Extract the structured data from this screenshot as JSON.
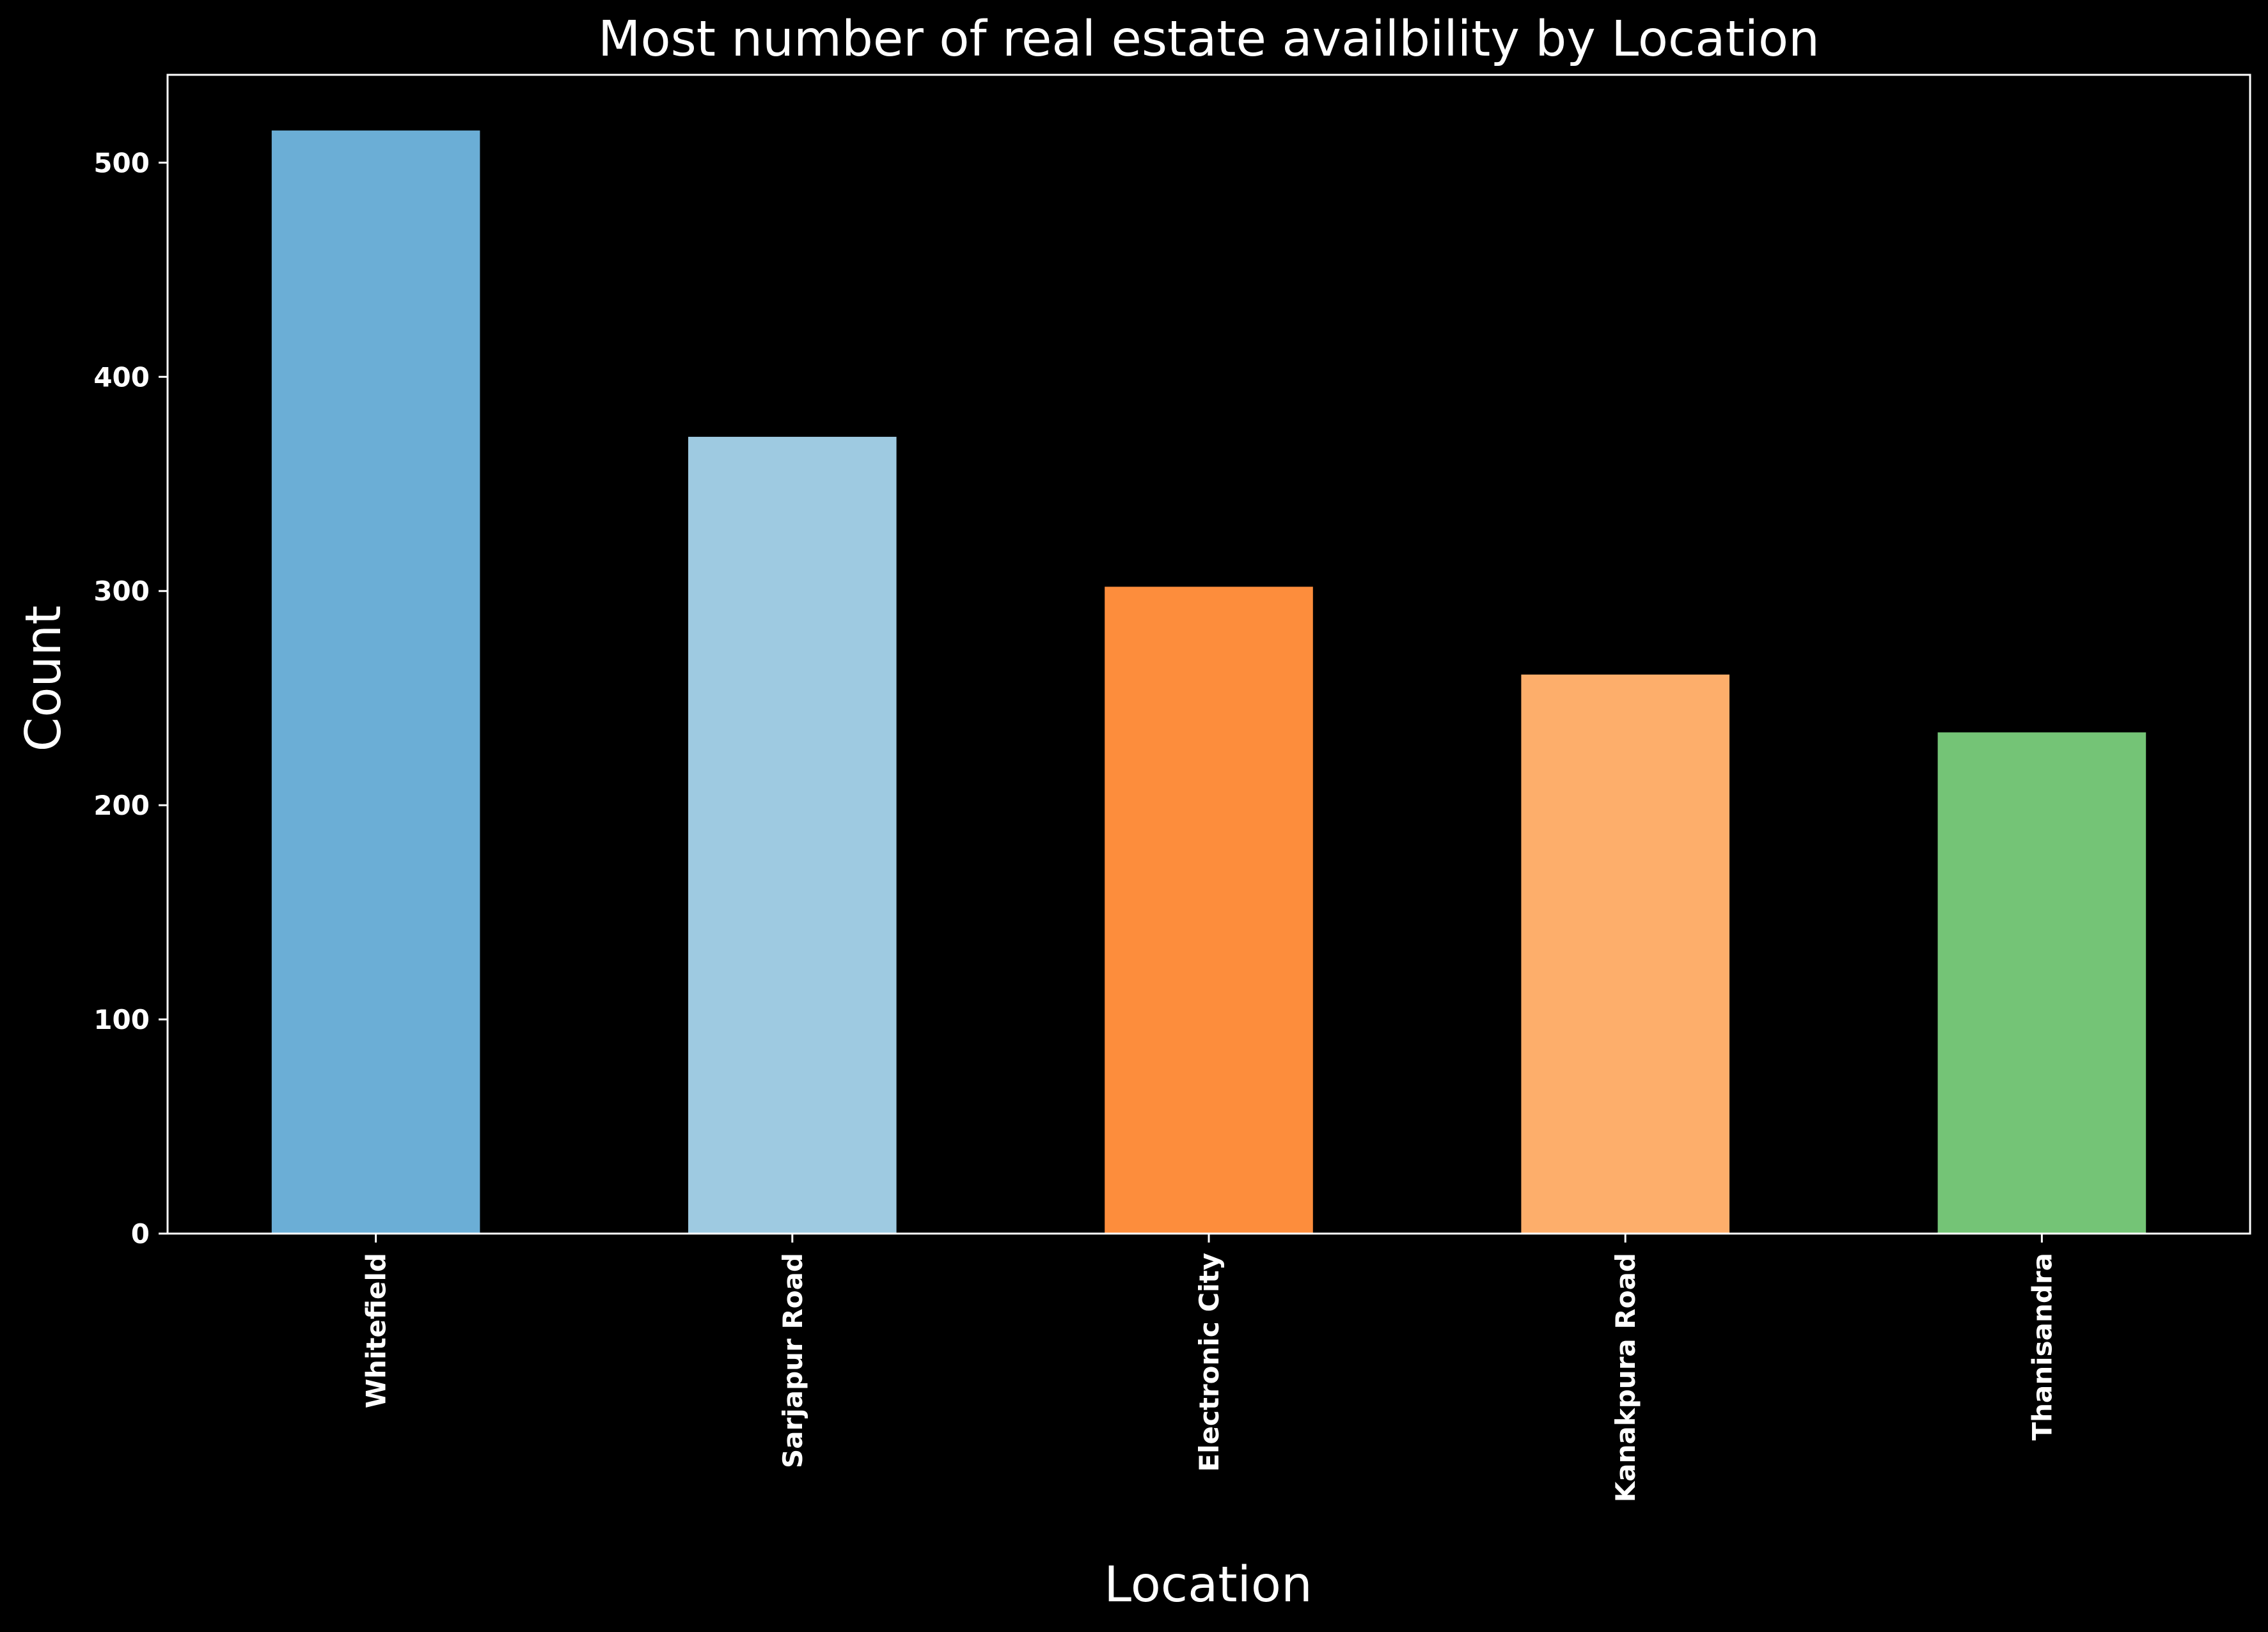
{
  "chart_data": {
    "type": "bar",
    "title": "Most number of real estate availbility by Location",
    "xlabel": "Location",
    "ylabel": "Count",
    "categories": [
      "Whitefield",
      "Sarjapur  Road",
      "Electronic City",
      "Kanakpura Road",
      "Thanisandra"
    ],
    "values": [
      515,
      372,
      302,
      261,
      234
    ],
    "bar_colors": [
      "#6baed6",
      "#9ecae1",
      "#fd8d3c",
      "#fdae6b",
      "#74c476"
    ],
    "ylim": [
      0,
      541
    ],
    "yticks": [
      0,
      100,
      200,
      300,
      400,
      500
    ],
    "grid": false,
    "legend": "none",
    "background_color": "#000000",
    "text_color": "#ffffff",
    "axes_color": "#ffffff"
  }
}
